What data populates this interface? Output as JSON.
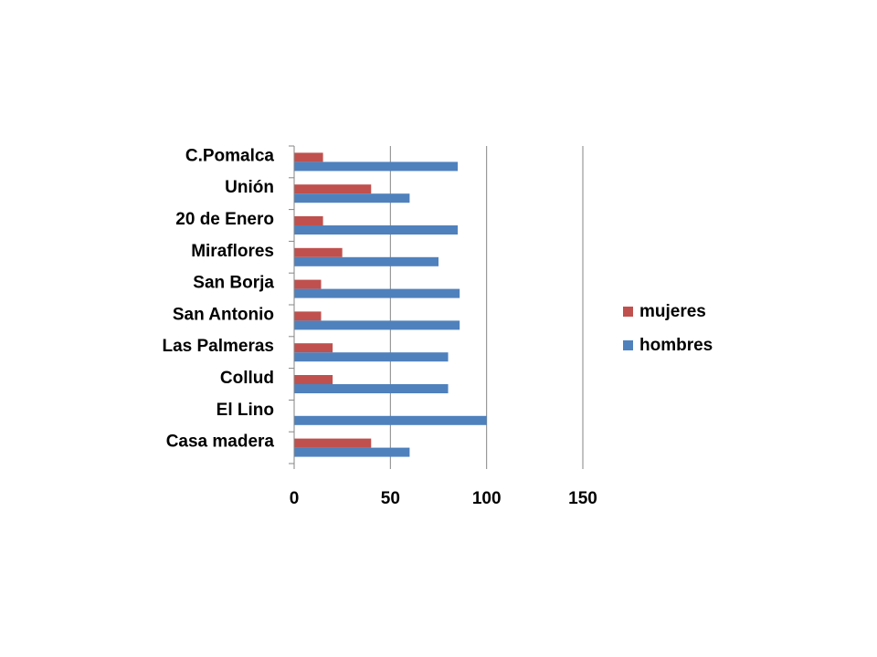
{
  "chart_data": {
    "type": "bar",
    "orientation": "horizontal",
    "categories": [
      "C.Pomalca",
      "Unión",
      "20 de Enero",
      "Miraflores",
      "San Borja",
      "San Antonio",
      "Las Palmeras",
      "Collud",
      "El Lino",
      "Casa madera"
    ],
    "series": [
      {
        "name": "mujeres",
        "color": "#C0504D",
        "values": [
          15,
          40,
          15,
          25,
          14,
          14,
          20,
          20,
          0,
          40
        ]
      },
      {
        "name": "hombres",
        "color": "#4F81BD",
        "values": [
          85,
          60,
          85,
          75,
          86,
          86,
          80,
          80,
          100,
          60
        ]
      }
    ],
    "xlim": [
      0,
      150
    ],
    "xticks": [
      "0",
      "50",
      "100",
      "150"
    ],
    "xtick_values": [
      0,
      50,
      100,
      150
    ],
    "grid": true,
    "legend_position": "right",
    "title": "",
    "xlabel": "",
    "ylabel": ""
  }
}
